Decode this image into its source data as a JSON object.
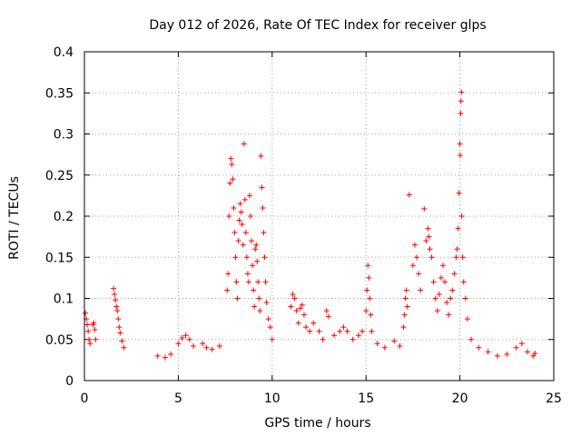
{
  "chart_data": {
    "type": "scatter",
    "title": "Day 012 of 2026, Rate Of TEC Index for receiver glps",
    "xlabel": "GPS time / hours",
    "ylabel": "ROTI / TECUs",
    "xlim": [
      0,
      25
    ],
    "ylim": [
      0,
      0.4
    ],
    "x_ticks": [
      "0",
      "5",
      "10",
      "15",
      "20",
      "25"
    ],
    "y_ticks": [
      "0",
      "0.05",
      "0.1",
      "0.15",
      "0.2",
      "0.25",
      "0.3",
      "0.35",
      "0.4"
    ],
    "grid": true,
    "marker": "+",
    "color": "#ff0000",
    "series": [
      {
        "points": [
          [
            0.05,
            0.082
          ],
          [
            0.1,
            0.075
          ],
          [
            0.15,
            0.068
          ],
          [
            0.2,
            0.06
          ],
          [
            0.25,
            0.05
          ],
          [
            0.3,
            0.045
          ],
          [
            0.45,
            0.068
          ],
          [
            0.5,
            0.07
          ],
          [
            0.55,
            0.062
          ],
          [
            0.6,
            0.05
          ],
          [
            1.55,
            0.112
          ],
          [
            1.6,
            0.105
          ],
          [
            1.65,
            0.098
          ],
          [
            1.7,
            0.09
          ],
          [
            1.75,
            0.085
          ],
          [
            1.8,
            0.075
          ],
          [
            1.85,
            0.065
          ],
          [
            1.9,
            0.058
          ],
          [
            2.0,
            0.048
          ],
          [
            2.1,
            0.04
          ],
          [
            3.9,
            0.03
          ],
          [
            4.3,
            0.028
          ],
          [
            4.6,
            0.032
          ],
          [
            5.0,
            0.045
          ],
          [
            5.2,
            0.052
          ],
          [
            5.4,
            0.055
          ],
          [
            5.6,
            0.05
          ],
          [
            5.8,
            0.042
          ],
          [
            6.3,
            0.045
          ],
          [
            6.5,
            0.04
          ],
          [
            6.8,
            0.038
          ],
          [
            7.2,
            0.042
          ],
          [
            7.6,
            0.11
          ],
          [
            7.65,
            0.13
          ],
          [
            7.7,
            0.2
          ],
          [
            7.75,
            0.24
          ],
          [
            7.8,
            0.27
          ],
          [
            7.85,
            0.263
          ],
          [
            7.9,
            0.245
          ],
          [
            7.95,
            0.21
          ],
          [
            8.0,
            0.18
          ],
          [
            8.05,
            0.15
          ],
          [
            8.1,
            0.12
          ],
          [
            8.15,
            0.1
          ],
          [
            8.2,
            0.17
          ],
          [
            8.25,
            0.195
          ],
          [
            8.3,
            0.215
          ],
          [
            8.35,
            0.205
          ],
          [
            8.4,
            0.19
          ],
          [
            8.45,
            0.165
          ],
          [
            8.5,
            0.288
          ],
          [
            8.55,
            0.22
          ],
          [
            8.6,
            0.18
          ],
          [
            8.65,
            0.15
          ],
          [
            8.7,
            0.13
          ],
          [
            8.75,
            0.12
          ],
          [
            8.8,
            0.225
          ],
          [
            8.85,
            0.2
          ],
          [
            8.9,
            0.17
          ],
          [
            8.95,
            0.14
          ],
          [
            9.0,
            0.11
          ],
          [
            9.05,
            0.09
          ],
          [
            9.1,
            0.16
          ],
          [
            9.15,
            0.165
          ],
          [
            9.2,
            0.145
          ],
          [
            9.25,
            0.12
          ],
          [
            9.3,
            0.1
          ],
          [
            9.35,
            0.085
          ],
          [
            9.4,
            0.273
          ],
          [
            9.45,
            0.235
          ],
          [
            9.5,
            0.21
          ],
          [
            9.55,
            0.18
          ],
          [
            9.6,
            0.15
          ],
          [
            9.65,
            0.12
          ],
          [
            9.7,
            0.095
          ],
          [
            9.8,
            0.075
          ],
          [
            9.9,
            0.065
          ],
          [
            10.0,
            0.05
          ],
          [
            11.0,
            0.09
          ],
          [
            11.1,
            0.105
          ],
          [
            11.2,
            0.1
          ],
          [
            11.3,
            0.085
          ],
          [
            11.4,
            0.07
          ],
          [
            11.5,
            0.088
          ],
          [
            11.6,
            0.092
          ],
          [
            11.7,
            0.08
          ],
          [
            11.8,
            0.065
          ],
          [
            12.0,
            0.06
          ],
          [
            12.2,
            0.07
          ],
          [
            12.5,
            0.06
          ],
          [
            12.7,
            0.05
          ],
          [
            12.9,
            0.085
          ],
          [
            13.0,
            0.078
          ],
          [
            13.3,
            0.055
          ],
          [
            13.6,
            0.06
          ],
          [
            13.8,
            0.065
          ],
          [
            14.0,
            0.06
          ],
          [
            14.3,
            0.05
          ],
          [
            14.6,
            0.055
          ],
          [
            14.8,
            0.06
          ],
          [
            15.0,
            0.085
          ],
          [
            15.05,
            0.11
          ],
          [
            15.1,
            0.14
          ],
          [
            15.15,
            0.125
          ],
          [
            15.2,
            0.1
          ],
          [
            15.25,
            0.08
          ],
          [
            15.3,
            0.06
          ],
          [
            15.6,
            0.045
          ],
          [
            16.0,
            0.04
          ],
          [
            16.5,
            0.048
          ],
          [
            16.8,
            0.042
          ],
          [
            17.0,
            0.065
          ],
          [
            17.05,
            0.08
          ],
          [
            17.1,
            0.1
          ],
          [
            17.15,
            0.11
          ],
          [
            17.2,
            0.09
          ],
          [
            17.3,
            0.226
          ],
          [
            17.5,
            0.14
          ],
          [
            17.6,
            0.165
          ],
          [
            17.7,
            0.15
          ],
          [
            17.8,
            0.13
          ],
          [
            17.9,
            0.11
          ],
          [
            18.1,
            0.209
          ],
          [
            18.2,
            0.17
          ],
          [
            18.3,
            0.185
          ],
          [
            18.35,
            0.175
          ],
          [
            18.4,
            0.16
          ],
          [
            18.5,
            0.15
          ],
          [
            18.6,
            0.12
          ],
          [
            18.7,
            0.1
          ],
          [
            18.8,
            0.085
          ],
          [
            18.9,
            0.105
          ],
          [
            19.0,
            0.125
          ],
          [
            19.1,
            0.14
          ],
          [
            19.2,
            0.12
          ],
          [
            19.3,
            0.095
          ],
          [
            19.4,
            0.08
          ],
          [
            19.5,
            0.1
          ],
          [
            19.6,
            0.11
          ],
          [
            19.7,
            0.13
          ],
          [
            19.8,
            0.15
          ],
          [
            19.85,
            0.16
          ],
          [
            19.9,
            0.185
          ],
          [
            19.95,
            0.228
          ],
          [
            20.0,
            0.288
          ],
          [
            20.02,
            0.274
          ],
          [
            20.04,
            0.325
          ],
          [
            20.06,
            0.34
          ],
          [
            20.08,
            0.351
          ],
          [
            20.1,
            0.2
          ],
          [
            20.15,
            0.15
          ],
          [
            20.2,
            0.12
          ],
          [
            20.3,
            0.1
          ],
          [
            20.4,
            0.075
          ],
          [
            20.6,
            0.05
          ],
          [
            21.0,
            0.04
          ],
          [
            21.5,
            0.035
          ],
          [
            22.0,
            0.03
          ],
          [
            22.5,
            0.032
          ],
          [
            23.0,
            0.04
          ],
          [
            23.3,
            0.045
          ],
          [
            23.6,
            0.035
          ],
          [
            23.9,
            0.03
          ],
          [
            24.0,
            0.033
          ]
        ]
      }
    ]
  }
}
